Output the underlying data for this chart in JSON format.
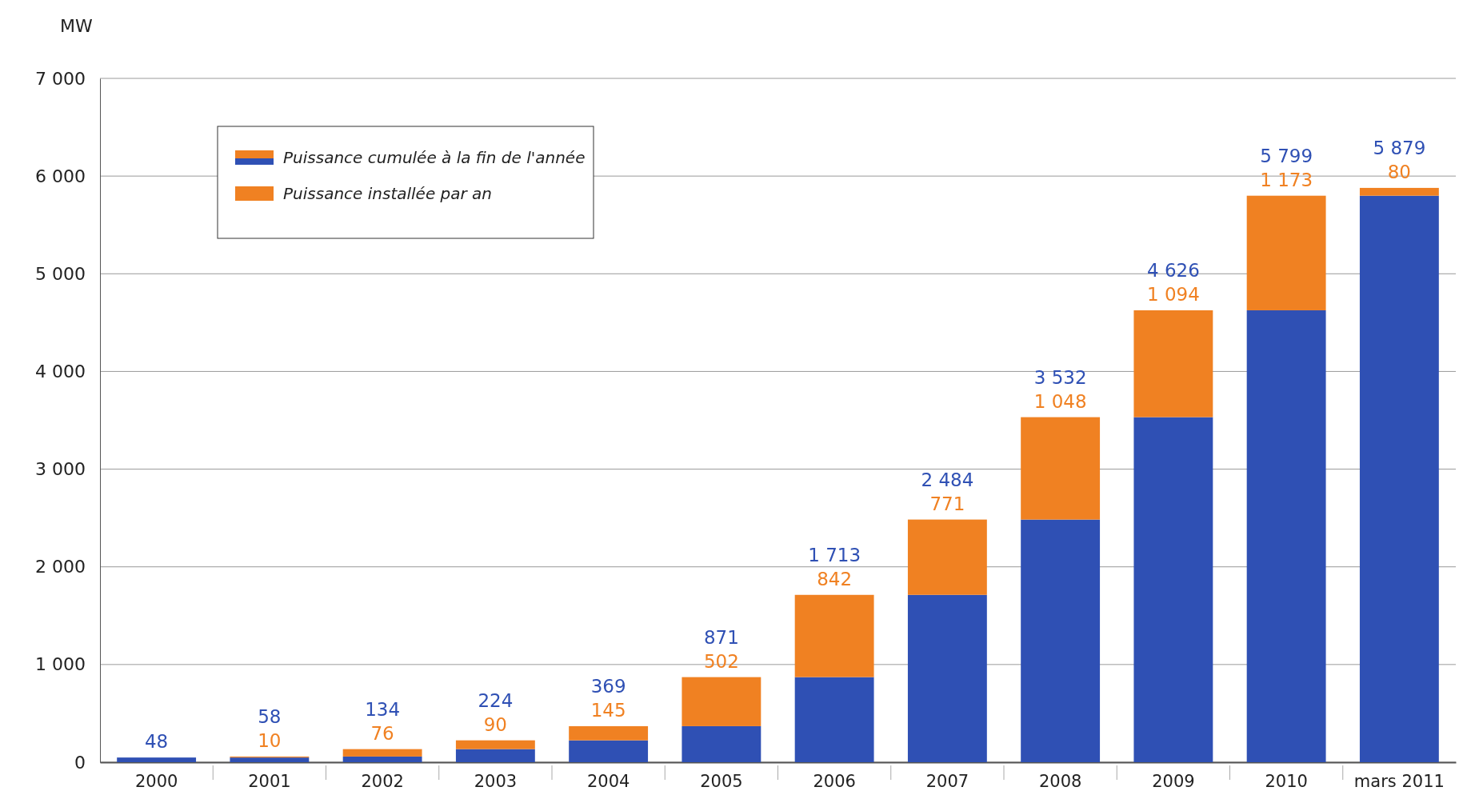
{
  "chart_data": {
    "type": "bar",
    "stacked": true,
    "ylabel": "MW",
    "categories": [
      "2000",
      "2001",
      "2002",
      "2003",
      "2004",
      "2005",
      "2006",
      "2007",
      "2008",
      "2009",
      "2010",
      "mars 2011"
    ],
    "series": [
      {
        "name": "Puissance cumulée à la fin de l'année",
        "color": "#2f50b4",
        "values": [
          48,
          48,
          58,
          134,
          224,
          369,
          871,
          1713,
          2484,
          3532,
          4626,
          5799
        ]
      },
      {
        "name": "Puissance installée par an",
        "color": "#f08122",
        "values": [
          null,
          10,
          76,
          90,
          145,
          502,
          842,
          771,
          1048,
          1094,
          1173,
          80
        ],
        "value_labels": [
          null,
          "10",
          "76",
          "90",
          "145",
          "502",
          "842",
          "771",
          "1 048",
          "1 094",
          "1 173",
          "80"
        ]
      }
    ],
    "totals": [
      "48",
      "58",
      "134",
      "224",
      "369",
      "871",
      "1 713",
      "2 484",
      "3 532",
      "4 626",
      "5 799",
      "5 879"
    ],
    "ylim": [
      0,
      7000
    ],
    "yticks": [
      0,
      {
        "value": 1000,
        "label": "1 000"
      },
      {
        "value": 2000,
        "label": "2 000"
      },
      {
        "value": 3000,
        "label": "3 000"
      },
      {
        "value": 4000,
        "label": "4 000"
      },
      {
        "value": 5000,
        "label": "5 000"
      },
      {
        "value": 6000,
        "label": "6 000"
      },
      {
        "value": 7000,
        "label": "7 000"
      }
    ],
    "grid": "y",
    "legend": "top left"
  }
}
